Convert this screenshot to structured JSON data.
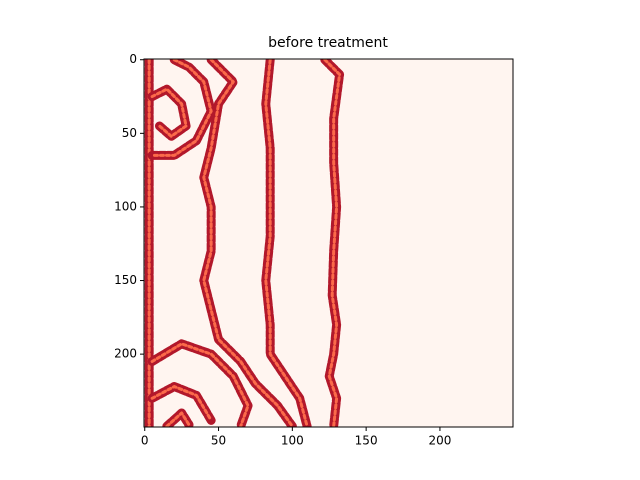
{
  "chart_data": {
    "type": "heatmap",
    "title": "before treatment",
    "xlim": [
      -0.5,
      249.5
    ],
    "ylim": [
      249.5,
      -0.5
    ],
    "xticks": [
      0,
      50,
      100,
      150,
      200
    ],
    "yticks": [
      0,
      50,
      100,
      150,
      200
    ],
    "background": "#fff5f0",
    "color": "#b2182b",
    "inner_color": "#fb6a4a",
    "fronts": [
      {
        "x": [
          3,
          3
        ],
        "y": [
          0,
          249
        ]
      },
      {
        "x": [
          45,
          60,
          50,
          45,
          40,
          45,
          45,
          40,
          45,
          50,
          65,
          75,
          90,
          100
        ],
        "y": [
          0,
          15,
          30,
          60,
          80,
          100,
          130,
          150,
          170,
          190,
          205,
          220,
          235,
          249
        ]
      },
      {
        "x": [
          85,
          82,
          85,
          85,
          85,
          82,
          85,
          85,
          95,
          105,
          110
        ],
        "y": [
          0,
          30,
          60,
          90,
          120,
          150,
          180,
          200,
          215,
          230,
          249
        ]
      },
      {
        "x": [
          122,
          132,
          128,
          128,
          130,
          128,
          127,
          130,
          128,
          125,
          130,
          128
        ],
        "y": [
          0,
          10,
          40,
          70,
          100,
          130,
          160,
          180,
          200,
          215,
          230,
          249
        ]
      },
      {
        "x": [
          20,
          30,
          40,
          45,
          35,
          20,
          5
        ],
        "y": [
          0,
          5,
          15,
          35,
          55,
          65,
          65
        ]
      },
      {
        "x": [
          5,
          15,
          25,
          28,
          18,
          10
        ],
        "y": [
          25,
          20,
          30,
          45,
          52,
          45
        ]
      },
      {
        "x": [
          5,
          25,
          45,
          60,
          70,
          65
        ],
        "y": [
          205,
          193,
          200,
          215,
          235,
          249
        ]
      },
      {
        "x": [
          5,
          20,
          35,
          45
        ],
        "y": [
          230,
          222,
          228,
          245
        ]
      },
      {
        "x": [
          15,
          25,
          30
        ],
        "y": [
          249,
          240,
          248
        ]
      }
    ]
  }
}
